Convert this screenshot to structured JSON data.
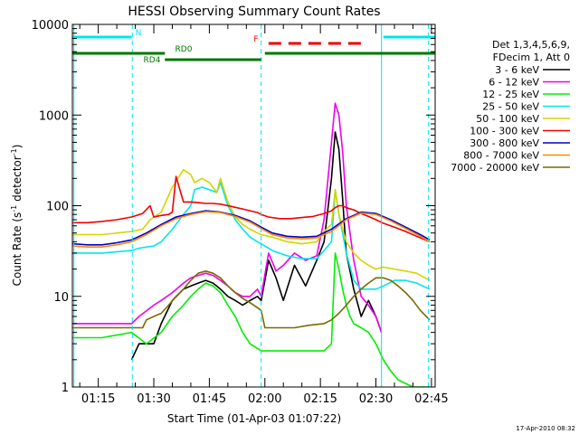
{
  "chart_data": {
    "type": "line",
    "title": "HESSI Observing Summary Count Rates",
    "xlabel": "Start Time (01-Apr-03 01:07:22)",
    "ylabel": "Count Rate (s-1 detector-1)",
    "ylabel_parts": {
      "main": "Count Rate (s",
      "sup1": "-1",
      "mid": " detector",
      "sup2": "-1",
      "end": ")"
    },
    "yscale": "log",
    "ylim": [
      1,
      10000
    ],
    "xlim_minutes": [
      68,
      166
    ],
    "y_ticks": [
      {
        "value": 1,
        "label": "1"
      },
      {
        "value": 10,
        "label": "10"
      },
      {
        "value": 100,
        "label": "100"
      },
      {
        "value": 1000,
        "label": "1000"
      },
      {
        "value": 10000,
        "label": "10000"
      }
    ],
    "x_ticks": [
      {
        "minutes": 75,
        "label": "01:15"
      },
      {
        "minutes": 90,
        "label": "01:30"
      },
      {
        "minutes": 105,
        "label": "01:45"
      },
      {
        "minutes": 120,
        "label": "02:00"
      },
      {
        "minutes": 135,
        "label": "02:15"
      },
      {
        "minutes": 150,
        "label": "02:30"
      },
      {
        "minutes": 165,
        "label": "02:45"
      }
    ],
    "legend": {
      "position": "right",
      "header": [
        "Det 1,3,4,5,6,9,",
        "FDecim 1, Att 0"
      ],
      "entries": [
        "3 - 6 keV",
        "6 - 12 keV",
        "12 - 25 keV",
        "25 - 50 keV",
        "50 - 100 keV",
        "100 - 300 keV",
        "300 - 800 keV",
        "800 - 7000 keV",
        "7000 - 20000 keV"
      ]
    },
    "flags": [
      {
        "label": "N",
        "color": "#00e5ee",
        "segments": [
          [
            68,
            84
          ],
          [
            152,
            166
          ]
        ]
      },
      {
        "label": "F",
        "color": "#ee0000",
        "segments": [
          [
            121,
            147
          ]
        ]
      },
      {
        "label": "RD0",
        "color": "#007700",
        "segments": [
          [
            68,
            93
          ],
          [
            120,
            166
          ]
        ]
      },
      {
        "label": "RD4",
        "color": "#007700",
        "segments": [
          [
            93,
            119
          ]
        ]
      }
    ],
    "vlines": [
      {
        "minutes": 68.4,
        "color": "#00e5ee",
        "style": "solid"
      },
      {
        "minutes": 84.2,
        "color": "#00e5ee",
        "style": "dashed"
      },
      {
        "minutes": 119.0,
        "color": "#00e5ee",
        "style": "dashed"
      },
      {
        "minutes": 151.5,
        "color": "#00e5ee",
        "style": "solid"
      },
      {
        "minutes": 164.2,
        "color": "#00e5ee",
        "style": "dashed"
      }
    ],
    "series": [
      {
        "name": "3 - 6 keV",
        "color": "#000000",
        "x": [
          84,
          86,
          90,
          92,
          95,
          98,
          100,
          102,
          104,
          106,
          108,
          110,
          112,
          114,
          116,
          118,
          119,
          121,
          123,
          125,
          128,
          131,
          134,
          136,
          138,
          139,
          140,
          141,
          142,
          144,
          146,
          148,
          150,
          151.5
        ],
        "y": [
          2,
          3,
          3,
          5,
          9,
          12,
          13,
          14,
          15,
          14,
          12,
          10,
          9,
          8,
          9,
          10,
          9,
          25,
          16,
          9,
          22,
          13,
          25,
          40,
          200,
          650,
          420,
          120,
          30,
          12,
          6,
          9,
          6,
          4
        ]
      },
      {
        "name": "6 - 12 keV",
        "color": "#ee00ee",
        "x": [
          68,
          84,
          86,
          90,
          92,
          95,
          98,
          100,
          102,
          104,
          106,
          108,
          110,
          112,
          114,
          116,
          118,
          119,
          121,
          123,
          125,
          128,
          131,
          134,
          136,
          138,
          139,
          140,
          141,
          142,
          144,
          146,
          148,
          150,
          151.5
        ],
        "y": [
          5,
          5,
          6,
          8,
          9,
          11,
          14,
          16,
          17,
          18,
          17,
          15,
          13,
          11,
          10,
          10,
          12,
          10,
          30,
          19,
          22,
          30,
          25,
          28,
          70,
          500,
          1350,
          1000,
          400,
          100,
          25,
          10,
          8,
          6,
          4
        ]
      },
      {
        "name": "12 - 25 keV",
        "color": "#00ee00",
        "x": [
          68,
          76,
          84,
          88,
          92,
          95,
          98,
          100,
          102,
          104,
          106,
          108,
          110,
          112,
          114,
          116,
          119,
          122,
          126,
          130,
          133,
          136,
          138,
          139,
          140,
          141,
          142,
          143,
          144,
          146,
          148,
          150,
          152,
          154,
          156,
          160,
          164.5
        ],
        "y": [
          3.5,
          3.5,
          4,
          3,
          4,
          6,
          8,
          10,
          12,
          14,
          13,
          11,
          8,
          6,
          4,
          3,
          2.5,
          2.5,
          2.5,
          2.5,
          2.5,
          2.5,
          3,
          30,
          20,
          12,
          8,
          6,
          5,
          4.5,
          4,
          3,
          2,
          1.5,
          1.2,
          1,
          1
        ]
      },
      {
        "name": "25 - 50 keV",
        "color": "#00e5ee",
        "x": [
          68,
          76,
          84,
          86,
          90,
          92,
          95,
          98,
          100,
          101,
          103,
          105,
          107,
          108,
          110,
          112,
          114,
          116,
          118,
          119,
          122,
          126,
          130,
          134,
          136,
          138,
          139,
          140,
          141,
          142,
          144,
          146,
          148,
          150,
          152,
          155,
          158,
          161,
          164.5
        ],
        "y": [
          30,
          30,
          32,
          34,
          36,
          40,
          55,
          80,
          100,
          150,
          160,
          150,
          140,
          180,
          100,
          70,
          55,
          45,
          40,
          38,
          32,
          28,
          26,
          26,
          32,
          40,
          150,
          80,
          50,
          30,
          15,
          12,
          12,
          12,
          13,
          15,
          15,
          14,
          12
        ]
      },
      {
        "name": "50 - 100 keV",
        "color": "#d4d400",
        "x": [
          68,
          76,
          84,
          87,
          89,
          92,
          95,
          98,
          100,
          101,
          103,
          105,
          107,
          108,
          110,
          112,
          114,
          116,
          118,
          119,
          122,
          126,
          130,
          134,
          136,
          138,
          139,
          140,
          141,
          142,
          144,
          146,
          148,
          150,
          152,
          155,
          158,
          161,
          164.5
        ],
        "y": [
          48,
          48,
          52,
          55,
          70,
          85,
          160,
          250,
          220,
          180,
          200,
          180,
          140,
          200,
          110,
          75,
          62,
          55,
          50,
          48,
          45,
          40,
          38,
          40,
          52,
          62,
          150,
          80,
          55,
          40,
          30,
          25,
          22,
          20,
          21,
          20,
          19,
          18,
          15
        ]
      },
      {
        "name": "100 - 300 keV",
        "color": "#ee0000",
        "x": [
          68,
          72,
          76,
          80,
          84,
          87,
          89,
          90,
          92,
          94,
          95,
          96,
          98,
          100,
          102,
          104,
          106,
          108,
          110,
          112,
          114,
          116,
          118,
          119,
          121,
          124,
          127,
          130,
          133,
          136,
          138,
          139,
          140,
          141,
          142,
          144,
          146,
          148,
          150,
          152,
          155,
          158,
          161,
          164.5
        ],
        "y": [
          65,
          65,
          67,
          70,
          75,
          82,
          100,
          75,
          78,
          80,
          85,
          210,
          110,
          110,
          108,
          106,
          106,
          104,
          100,
          96,
          92,
          88,
          84,
          80,
          75,
          72,
          72,
          74,
          76,
          82,
          88,
          95,
          100,
          100,
          95,
          90,
          82,
          76,
          70,
          64,
          58,
          52,
          46,
          40
        ]
      },
      {
        "name": "300 - 800 keV",
        "color": "#0000cc",
        "x": [
          68,
          72,
          76,
          80,
          84,
          88,
          92,
          96,
          100,
          104,
          108,
          112,
          116,
          119,
          122,
          126,
          130,
          134,
          138,
          142,
          146,
          150,
          154,
          158,
          162,
          164.5
        ],
        "y": [
          38,
          37,
          37,
          39,
          42,
          50,
          62,
          75,
          82,
          88,
          85,
          78,
          68,
          58,
          50,
          46,
          45,
          46,
          55,
          72,
          85,
          82,
          70,
          58,
          48,
          42
        ]
      },
      {
        "name": "800 - 7000 keV",
        "color": "#ff8800",
        "x": [
          68,
          72,
          76,
          80,
          84,
          88,
          92,
          96,
          100,
          104,
          108,
          112,
          116,
          119,
          122,
          126,
          130,
          134,
          138,
          142,
          146,
          150,
          154,
          158,
          162,
          164.5
        ],
        "y": [
          36,
          35,
          35,
          37,
          40,
          48,
          60,
          72,
          80,
          86,
          84,
          76,
          66,
          56,
          48,
          44,
          43,
          44,
          52,
          70,
          83,
          80,
          68,
          56,
          46,
          40
        ]
      },
      {
        "name": "7000 - 20000 keV",
        "color": "#7b6a00",
        "x": [
          68,
          72,
          76,
          80,
          84,
          87,
          88,
          90,
          92,
          94,
          96,
          98,
          100,
          102,
          104,
          106,
          108,
          110,
          112,
          114,
          116,
          118,
          119,
          120,
          124,
          128,
          132,
          136,
          138,
          140,
          142,
          144,
          146,
          148,
          150,
          152,
          154,
          156,
          158,
          160,
          162,
          164.5
        ],
        "y": [
          4.5,
          4.5,
          4.5,
          4.5,
          4.5,
          4.5,
          5.5,
          6,
          6.5,
          8,
          10,
          12,
          15,
          18,
          19,
          18,
          16,
          13,
          11,
          9.5,
          8.5,
          7.5,
          7,
          4.5,
          4.5,
          4.5,
          4.8,
          5,
          5.5,
          6.5,
          8,
          10,
          12,
          14,
          16,
          16,
          15,
          13,
          11,
          9,
          7,
          5.5
        ]
      }
    ]
  },
  "footer": {
    "stamp": "17-Apr-2010 08:32"
  }
}
